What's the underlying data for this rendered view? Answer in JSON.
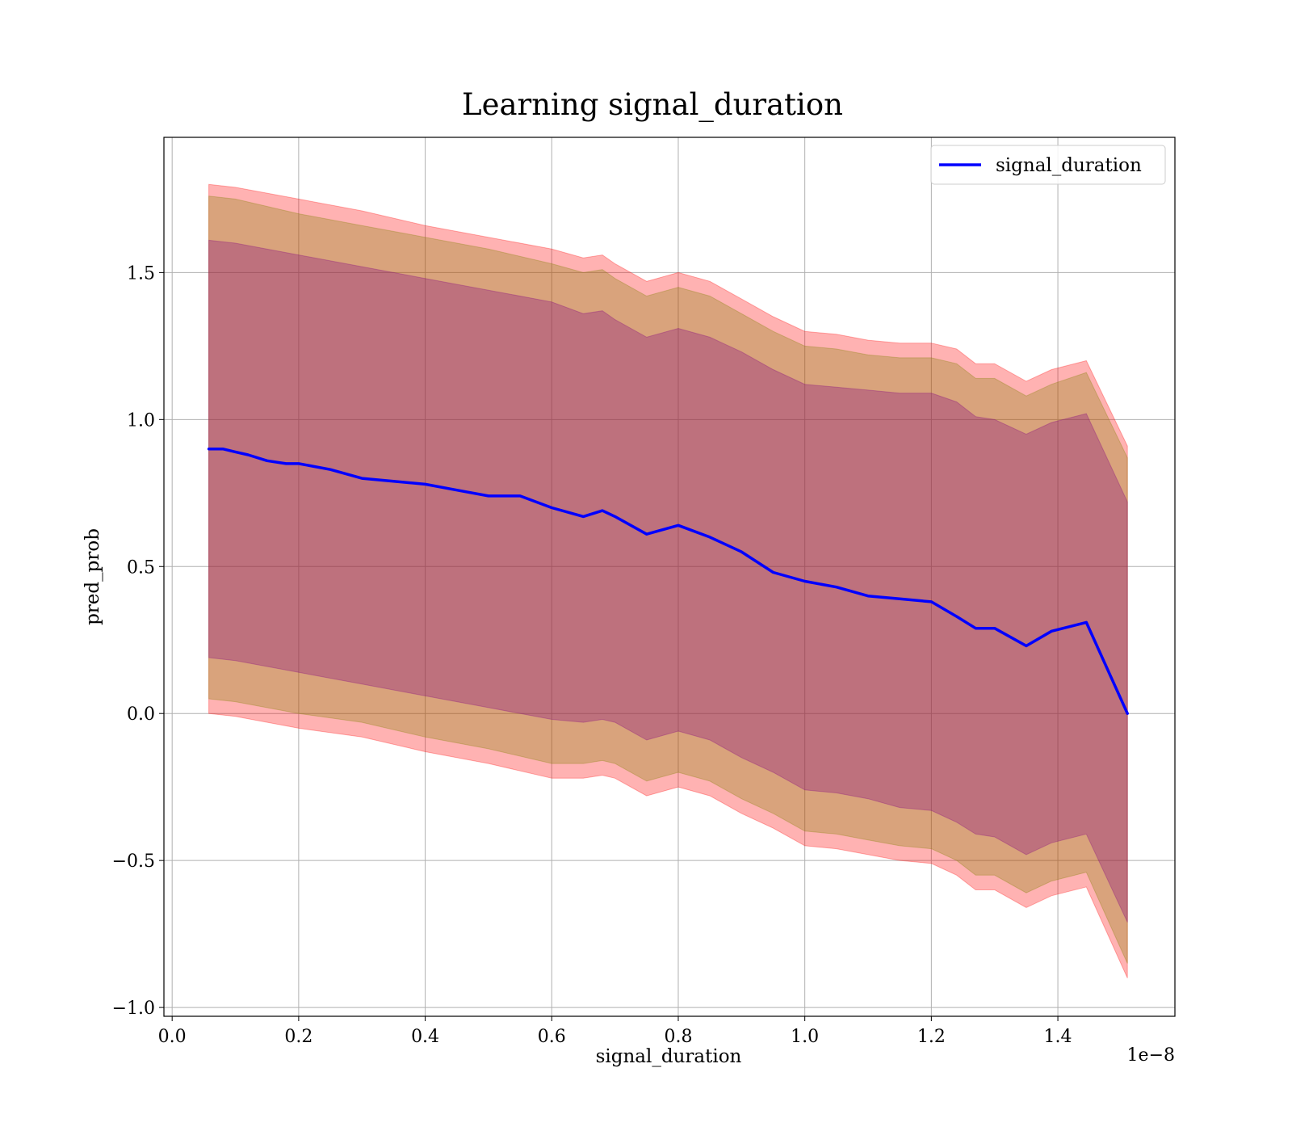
{
  "chart_data": {
    "type": "line",
    "title": "Learning signal_duration",
    "xlabel": "signal_duration",
    "ylabel": "pred_prob",
    "x_offset_label": "1e−8",
    "xlim": [
      -0.013,
      1.585
    ],
    "ylim": [
      -1.03,
      1.96
    ],
    "x_ticks": [
      0.0,
      0.2,
      0.4,
      0.6,
      0.8,
      1.0,
      1.2,
      1.4
    ],
    "x_tick_labels": [
      "0.0",
      "0.2",
      "0.4",
      "0.6",
      "0.8",
      "1.0",
      "1.2",
      "1.4"
    ],
    "y_ticks": [
      -1.0,
      -0.5,
      0.0,
      0.5,
      1.0,
      1.5
    ],
    "y_tick_labels": [
      "−1.0",
      "−0.5",
      "0.0",
      "0.5",
      "1.0",
      "1.5"
    ],
    "grid": true,
    "legend_position": "upper right",
    "series": [
      {
        "name": "signal_duration",
        "color": "#0000ff",
        "x": [
          0.058,
          0.07,
          0.08,
          0.1,
          0.12,
          0.15,
          0.18,
          0.2,
          0.25,
          0.3,
          0.35,
          0.4,
          0.45,
          0.5,
          0.55,
          0.6,
          0.65,
          0.68,
          0.7,
          0.75,
          0.8,
          0.85,
          0.9,
          0.95,
          1.0,
          1.05,
          1.1,
          1.15,
          1.2,
          1.24,
          1.27,
          1.3,
          1.35,
          1.39,
          1.445,
          1.51
        ],
        "y": [
          0.9,
          0.9,
          0.9,
          0.89,
          0.88,
          0.86,
          0.85,
          0.85,
          0.83,
          0.8,
          0.79,
          0.78,
          0.76,
          0.74,
          0.74,
          0.7,
          0.67,
          0.69,
          0.67,
          0.61,
          0.64,
          0.6,
          0.55,
          0.48,
          0.45,
          0.43,
          0.4,
          0.39,
          0.38,
          0.33,
          0.29,
          0.29,
          0.23,
          0.28,
          0.31,
          0.0
        ]
      }
    ],
    "bands": [
      {
        "color": "#ff0000",
        "opacity": 0.3,
        "x": [
          0.058,
          0.1,
          0.2,
          0.3,
          0.4,
          0.5,
          0.6,
          0.65,
          0.68,
          0.7,
          0.75,
          0.8,
          0.85,
          0.9,
          0.95,
          1.0,
          1.05,
          1.1,
          1.15,
          1.2,
          1.24,
          1.27,
          1.3,
          1.35,
          1.39,
          1.445,
          1.51
        ],
        "upper": [
          1.8,
          1.79,
          1.75,
          1.71,
          1.66,
          1.62,
          1.58,
          1.55,
          1.56,
          1.53,
          1.47,
          1.5,
          1.47,
          1.41,
          1.35,
          1.3,
          1.29,
          1.27,
          1.26,
          1.26,
          1.24,
          1.19,
          1.19,
          1.13,
          1.17,
          1.2,
          0.91
        ],
        "lower": [
          0.0,
          -0.01,
          -0.05,
          -0.08,
          -0.13,
          -0.17,
          -0.22,
          -0.22,
          -0.21,
          -0.22,
          -0.28,
          -0.25,
          -0.28,
          -0.34,
          -0.39,
          -0.45,
          -0.46,
          -0.48,
          -0.5,
          -0.51,
          -0.55,
          -0.6,
          -0.6,
          -0.66,
          -0.62,
          -0.59,
          -0.9
        ]
      },
      {
        "color": "#808000",
        "opacity": 0.3,
        "x": [
          0.058,
          0.1,
          0.2,
          0.3,
          0.4,
          0.5,
          0.6,
          0.65,
          0.68,
          0.7,
          0.75,
          0.8,
          0.85,
          0.9,
          0.95,
          1.0,
          1.05,
          1.1,
          1.15,
          1.2,
          1.24,
          1.27,
          1.3,
          1.35,
          1.39,
          1.445,
          1.51
        ],
        "upper": [
          1.76,
          1.75,
          1.7,
          1.66,
          1.62,
          1.58,
          1.53,
          1.5,
          1.51,
          1.48,
          1.42,
          1.45,
          1.42,
          1.36,
          1.3,
          1.25,
          1.24,
          1.22,
          1.21,
          1.21,
          1.19,
          1.14,
          1.14,
          1.08,
          1.12,
          1.16,
          0.87
        ],
        "lower": [
          0.05,
          0.04,
          0.0,
          -0.03,
          -0.08,
          -0.12,
          -0.17,
          -0.17,
          -0.16,
          -0.17,
          -0.23,
          -0.2,
          -0.23,
          -0.29,
          -0.34,
          -0.4,
          -0.41,
          -0.43,
          -0.45,
          -0.46,
          -0.5,
          -0.55,
          -0.55,
          -0.61,
          -0.57,
          -0.54,
          -0.85
        ]
      },
      {
        "color": "#800080",
        "opacity": 0.3,
        "x": [
          0.058,
          0.1,
          0.2,
          0.3,
          0.4,
          0.5,
          0.6,
          0.65,
          0.68,
          0.7,
          0.75,
          0.8,
          0.85,
          0.9,
          0.95,
          1.0,
          1.05,
          1.1,
          1.15,
          1.2,
          1.24,
          1.27,
          1.3,
          1.35,
          1.39,
          1.445,
          1.51
        ],
        "upper": [
          1.61,
          1.6,
          1.56,
          1.52,
          1.48,
          1.44,
          1.4,
          1.36,
          1.37,
          1.34,
          1.28,
          1.31,
          1.28,
          1.23,
          1.17,
          1.12,
          1.11,
          1.1,
          1.09,
          1.09,
          1.06,
          1.01,
          1.0,
          0.95,
          0.99,
          1.02,
          0.72
        ],
        "lower": [
          0.19,
          0.18,
          0.14,
          0.1,
          0.06,
          0.02,
          -0.02,
          -0.03,
          -0.02,
          -0.03,
          -0.09,
          -0.06,
          -0.09,
          -0.15,
          -0.2,
          -0.26,
          -0.27,
          -0.29,
          -0.32,
          -0.33,
          -0.37,
          -0.41,
          -0.42,
          -0.48,
          -0.44,
          -0.41,
          -0.71
        ]
      }
    ]
  }
}
